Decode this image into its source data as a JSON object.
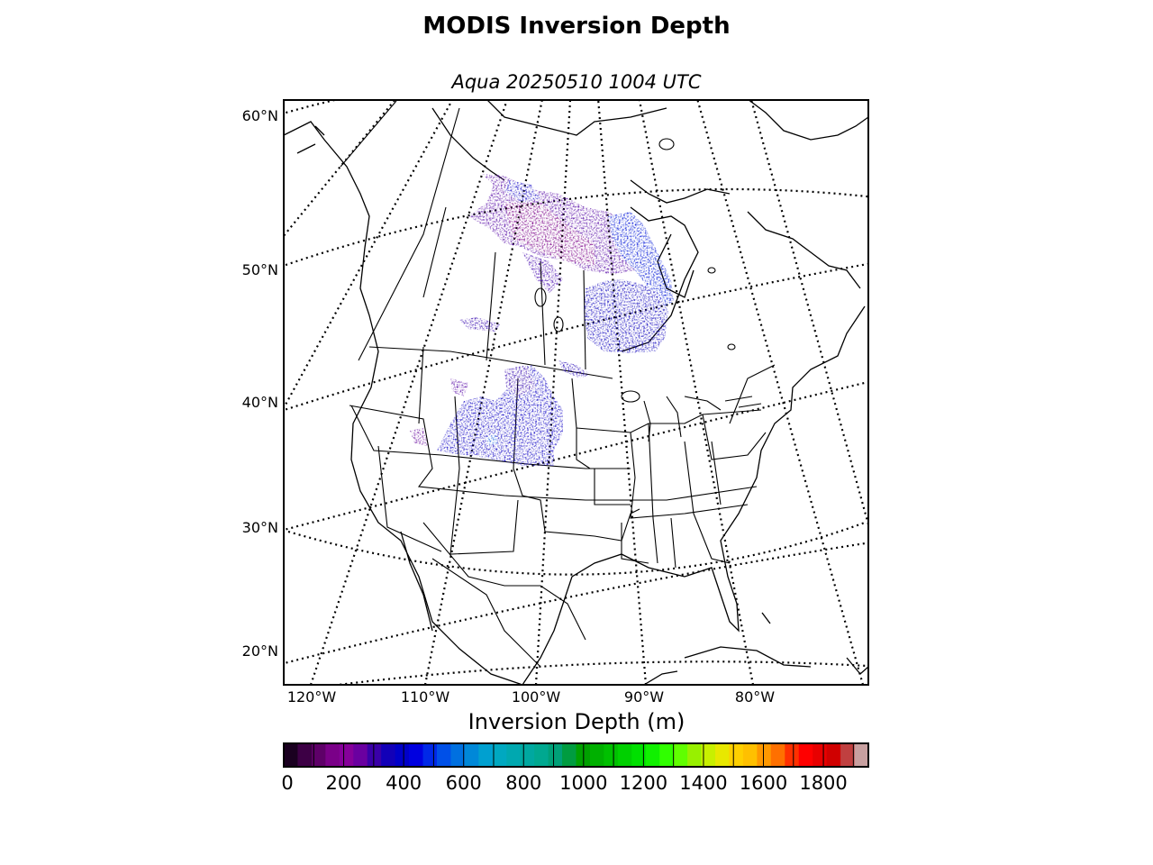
{
  "title": "MODIS Inversion Depth",
  "subtitle": "Aqua 20250510 1004 UTC",
  "lat_labels": [
    "60°N",
    "50°N",
    "40°N",
    "30°N",
    "20°N"
  ],
  "lon_labels": [
    "120°W",
    "110°W",
    "100°W",
    "90°W",
    "80°W"
  ],
  "colorbar": {
    "title": "Inversion Depth (m)",
    "ticks": [
      "0",
      "200",
      "400",
      "600",
      "800",
      "1000",
      "1200",
      "1400",
      "1600",
      "1800"
    ],
    "range": [
      0,
      1950
    ],
    "step": 50,
    "colors": [
      "#1a0020",
      "#3d0045",
      "#5e0068",
      "#7a0088",
      "#86009a",
      "#6a00a0",
      "#3a00a8",
      "#1200b8",
      "#0000c8",
      "#0000e0",
      "#0028e8",
      "#0050e8",
      "#0070e0",
      "#0088d8",
      "#00a0d0",
      "#00a8c0",
      "#00a8b0",
      "#00a8a0",
      "#00a890",
      "#00a078",
      "#009c40",
      "#00a000",
      "#00b000",
      "#00c000",
      "#00d000",
      "#00e000",
      "#10f000",
      "#30ff00",
      "#60ff00",
      "#98f000",
      "#c8f000",
      "#e8e800",
      "#ffd000",
      "#ffc000",
      "#ff9800",
      "#ff7000",
      "#ff3000",
      "#ff0000",
      "#e80000",
      "#d00000",
      "#c04040",
      "#c8a0a0"
    ]
  },
  "map": {
    "projection": "polar stereographic",
    "coastlines": true,
    "state_borders": true,
    "graticule": "dotted",
    "data_layer": "Inversion Depth (m)"
  }
}
